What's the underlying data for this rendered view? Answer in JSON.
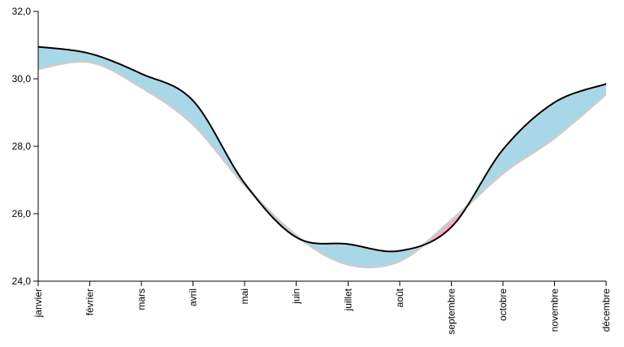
{
  "chart_data": {
    "type": "area",
    "categories": [
      "janvier",
      "février",
      "mars",
      "avril",
      "mai",
      "juin",
      "juillet",
      "août",
      "septembre",
      "octobre",
      "novembre",
      "décembre"
    ],
    "y_tick_labels": [
      "24,0",
      "26,0",
      "28,0",
      "30,0",
      "32,0"
    ],
    "ylim": [
      24,
      32
    ],
    "series": [
      {
        "values": [
          30.95,
          30.75,
          30.15,
          29.35,
          26.9,
          25.3,
          25.1,
          24.9,
          25.6,
          27.9,
          29.3,
          29.85
        ]
      },
      {
        "values": [
          30.3,
          30.5,
          29.75,
          28.65,
          26.85,
          25.35,
          24.5,
          24.6,
          25.8,
          27.2,
          28.25,
          29.55
        ]
      }
    ],
    "fill_above_color": "#ffaac8",
    "fill_below_color": "#a8d8e8",
    "main_line_color": "#000000",
    "reference_line_color": "#cccccc",
    "title": "",
    "xlabel": "",
    "ylabel": ""
  }
}
